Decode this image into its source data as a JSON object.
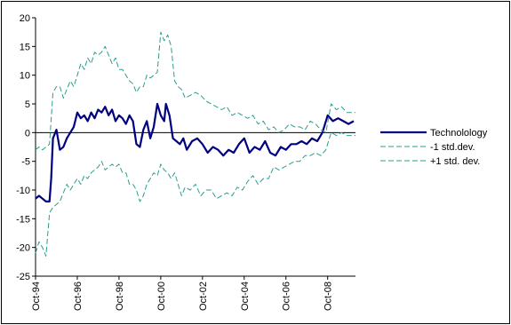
{
  "chart_data": {
    "type": "line",
    "title": "",
    "xlabel": "",
    "ylabel": "",
    "ylim": [
      -25,
      20
    ],
    "yticks": [
      20,
      15,
      10,
      5,
      0,
      -5,
      -10,
      -15,
      -20,
      -25
    ],
    "xlim": [
      "1994-10",
      "2010-02"
    ],
    "xticks": [
      "Oct-94",
      "Oct-96",
      "Oct-98",
      "Oct-00",
      "Oct-02",
      "Oct-04",
      "Oct-06",
      "Oct-08"
    ],
    "zero_line": true,
    "grid": false,
    "legend_position": "right",
    "series": [
      {
        "name": "Technolology",
        "color": "#000080",
        "style": "solid",
        "x": [
          "1994-10",
          "1994-12",
          "1995-02",
          "1995-04",
          "1995-06",
          "1995-07",
          "1995-08",
          "1995-10",
          "1995-12",
          "1996-02",
          "1996-04",
          "1996-06",
          "1996-08",
          "1996-10",
          "1996-12",
          "1997-02",
          "1997-04",
          "1997-06",
          "1997-08",
          "1997-10",
          "1997-12",
          "1998-02",
          "1998-04",
          "1998-06",
          "1998-08",
          "1998-10",
          "1998-12",
          "1999-02",
          "1999-04",
          "1999-06",
          "1999-08",
          "1999-10",
          "1999-12",
          "2000-02",
          "2000-04",
          "2000-06",
          "2000-08",
          "2000-10",
          "2000-12",
          "2001-01",
          "2001-03",
          "2001-05",
          "2001-07",
          "2001-09",
          "2001-11",
          "2002-01",
          "2002-04",
          "2002-07",
          "2002-10",
          "2003-01",
          "2003-04",
          "2003-07",
          "2003-10",
          "2004-01",
          "2004-04",
          "2004-07",
          "2004-10",
          "2005-01",
          "2005-04",
          "2005-07",
          "2005-10",
          "2006-01",
          "2006-04",
          "2006-07",
          "2006-10",
          "2007-01",
          "2007-04",
          "2007-07",
          "2007-10",
          "2008-01",
          "2008-04",
          "2008-07",
          "2008-10",
          "2009-01",
          "2009-04",
          "2009-07",
          "2009-10",
          "2010-01"
        ],
        "values": [
          -11.5,
          -11,
          -11.5,
          -12,
          -12,
          -8,
          -1,
          0.5,
          -3,
          -2.5,
          -1,
          0,
          1,
          3.5,
          2.5,
          3,
          2,
          3.5,
          2.5,
          4,
          3.5,
          4.5,
          3,
          4,
          2,
          3,
          2.5,
          1.5,
          3,
          2,
          -2,
          -2.5,
          0.5,
          2,
          -1,
          1,
          5,
          3,
          2,
          5,
          3,
          -1,
          -1.5,
          -2,
          -1,
          -3,
          -1.5,
          -1,
          -2,
          -3.5,
          -2.5,
          -3,
          -4,
          -3,
          -3.5,
          -2,
          -1,
          -3.5,
          -2.5,
          -3,
          -1.5,
          -3.5,
          -4,
          -2.5,
          -3,
          -2,
          -2,
          -1.5,
          -2,
          -1,
          -1.5,
          0,
          3,
          2,
          2.5,
          2,
          1.5,
          2
        ]
      },
      {
        "name": "-1 std.dev.",
        "color": "#2a9d8f",
        "style": "dashed",
        "x": [
          "1994-10",
          "1994-12",
          "1995-02",
          "1995-04",
          "1995-06",
          "1995-08",
          "1995-10",
          "1995-12",
          "1996-02",
          "1996-04",
          "1996-06",
          "1996-08",
          "1996-10",
          "1996-12",
          "1997-02",
          "1997-04",
          "1997-06",
          "1997-08",
          "1997-10",
          "1997-12",
          "1998-02",
          "1998-04",
          "1998-06",
          "1998-08",
          "1998-10",
          "1998-12",
          "1999-02",
          "1999-04",
          "1999-06",
          "1999-08",
          "1999-10",
          "1999-12",
          "2000-02",
          "2000-04",
          "2000-06",
          "2000-08",
          "2000-10",
          "2000-12",
          "2001-02",
          "2001-04",
          "2001-06",
          "2001-08",
          "2001-10",
          "2001-12",
          "2002-03",
          "2002-06",
          "2002-09",
          "2002-12",
          "2003-03",
          "2003-06",
          "2003-09",
          "2003-12",
          "2004-03",
          "2004-06",
          "2004-09",
          "2004-12",
          "2005-03",
          "2005-06",
          "2005-09",
          "2005-12",
          "2006-03",
          "2006-06",
          "2006-09",
          "2006-12",
          "2007-03",
          "2007-06",
          "2007-09",
          "2007-12",
          "2008-03",
          "2008-06",
          "2008-09",
          "2008-12",
          "2009-03",
          "2009-06",
          "2009-09",
          "2009-12",
          "2010-02"
        ],
        "values": [
          -21,
          -19,
          -20,
          -21.5,
          -14,
          -13,
          -12.5,
          -12,
          -10.5,
          -9,
          -10,
          -9,
          -8,
          -9,
          -7.5,
          -8,
          -7,
          -6.5,
          -6,
          -5,
          -6.5,
          -6,
          -5.5,
          -6,
          -5.5,
          -7,
          -7,
          -9,
          -9,
          -10,
          -12,
          -11,
          -9,
          -8,
          -7,
          -7.5,
          -5.5,
          -6.5,
          -7,
          -8,
          -7,
          -9,
          -11,
          -9.5,
          -10,
          -9,
          -11,
          -10,
          -10,
          -11.5,
          -11,
          -10.5,
          -11,
          -9.5,
          -10,
          -8.5,
          -7.5,
          -9,
          -8,
          -8,
          -6,
          -6.5,
          -6,
          -5.5,
          -5,
          -5,
          -4,
          -4,
          -3.5,
          -4,
          -3,
          0,
          -0.5,
          0,
          -0.5,
          -0.5,
          -0.5
        ]
      },
      {
        "name": "+1 std. dev.",
        "color": "#2a9d8f",
        "style": "dashed",
        "x": [
          "1994-10",
          "1994-12",
          "1995-02",
          "1995-04",
          "1995-06",
          "1995-08",
          "1995-10",
          "1995-12",
          "1996-02",
          "1996-04",
          "1996-06",
          "1996-08",
          "1996-10",
          "1996-12",
          "1997-02",
          "1997-04",
          "1997-06",
          "1997-08",
          "1997-10",
          "1997-12",
          "1998-02",
          "1998-04",
          "1998-06",
          "1998-08",
          "1998-10",
          "1998-12",
          "1999-02",
          "1999-04",
          "1999-06",
          "1999-08",
          "1999-10",
          "1999-12",
          "2000-02",
          "2000-04",
          "2000-06",
          "2000-08",
          "2000-10",
          "2000-12",
          "2001-02",
          "2001-04",
          "2001-06",
          "2001-08",
          "2001-10",
          "2001-12",
          "2002-03",
          "2002-06",
          "2002-09",
          "2002-12",
          "2003-03",
          "2003-06",
          "2003-09",
          "2003-12",
          "2004-03",
          "2004-06",
          "2004-09",
          "2004-12",
          "2005-03",
          "2005-06",
          "2005-09",
          "2005-12",
          "2006-03",
          "2006-06",
          "2006-09",
          "2006-12",
          "2007-03",
          "2007-06",
          "2007-09",
          "2007-12",
          "2008-03",
          "2008-06",
          "2008-09",
          "2008-12",
          "2009-03",
          "2009-06",
          "2009-09",
          "2009-12",
          "2010-02"
        ],
        "values": [
          -3,
          -2.5,
          -3,
          -2.5,
          -2,
          7,
          8,
          8,
          6,
          7.5,
          9,
          8,
          10,
          12,
          11,
          13,
          12,
          14,
          13.5,
          14,
          15,
          13.5,
          12,
          13,
          11,
          11,
          10,
          9,
          8.5,
          7,
          8,
          8,
          10,
          9.5,
          10,
          10.5,
          17.5,
          16,
          17,
          15,
          9,
          8,
          7.5,
          6,
          6.5,
          7,
          6.5,
          5.5,
          5,
          4.5,
          4,
          4.5,
          3,
          3.5,
          3,
          2.5,
          3,
          1.5,
          2,
          0.5,
          1,
          0,
          0.5,
          1.5,
          1,
          1,
          0.5,
          2,
          1.5,
          0.5,
          0,
          5,
          4,
          4.5,
          3.5,
          3.5,
          3.5
        ]
      }
    ]
  }
}
